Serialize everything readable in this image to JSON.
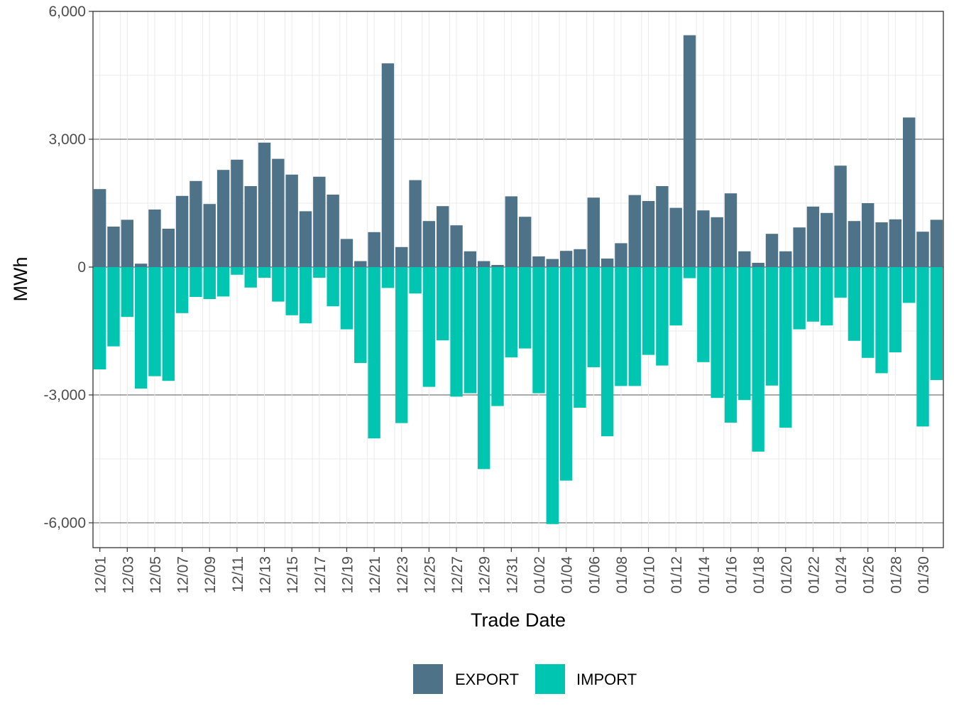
{
  "chart_data": {
    "type": "bar",
    "stacked": true,
    "xlabel": "Trade Date",
    "ylabel": "MWh",
    "ylim": [
      -6600,
      6000
    ],
    "y_ticks": [
      6000,
      3000,
      0,
      -3000,
      -6000
    ],
    "y_tick_labels": [
      "6,000",
      "3,000",
      "0",
      "-3,000",
      "-6,000"
    ],
    "grid": true,
    "legend_position": "bottom",
    "categories": [
      "12/01",
      "12/02",
      "12/03",
      "12/04",
      "12/05",
      "12/06",
      "12/07",
      "12/08",
      "12/09",
      "12/10",
      "12/11",
      "12/12",
      "12/13",
      "12/14",
      "12/15",
      "12/16",
      "12/17",
      "12/18",
      "12/19",
      "12/20",
      "12/21",
      "12/22",
      "12/23",
      "12/24",
      "12/25",
      "12/26",
      "12/27",
      "12/28",
      "12/29",
      "12/30",
      "12/31",
      "01/01",
      "01/02",
      "01/03",
      "01/04",
      "01/05",
      "01/06",
      "01/07",
      "01/08",
      "01/09",
      "01/10",
      "01/11",
      "01/12",
      "01/13",
      "01/14",
      "01/15",
      "01/16",
      "01/17",
      "01/18",
      "01/19",
      "01/20",
      "01/21",
      "01/22",
      "01/23",
      "01/24",
      "01/25",
      "01/26",
      "01/27",
      "01/28",
      "01/29",
      "01/30",
      "01/31"
    ],
    "x_tick_labels": [
      "12/01",
      "12/03",
      "12/05",
      "12/07",
      "12/09",
      "12/11",
      "12/13",
      "12/15",
      "12/17",
      "12/19",
      "12/21",
      "12/23",
      "12/25",
      "12/27",
      "12/29",
      "12/31",
      "01/02",
      "01/04",
      "01/06",
      "01/08",
      "01/10",
      "01/12",
      "01/14",
      "01/16",
      "01/18",
      "01/20",
      "01/22",
      "01/24",
      "01/26",
      "01/28",
      "01/30"
    ],
    "series": [
      {
        "name": "EXPORT",
        "color": "#4e7388",
        "values": [
          1830,
          950,
          1110,
          80,
          1350,
          900,
          1670,
          2020,
          1480,
          2280,
          2520,
          1900,
          2920,
          2540,
          2170,
          1310,
          2120,
          1700,
          660,
          140,
          820,
          4780,
          470,
          2040,
          1080,
          1430,
          980,
          370,
          140,
          50,
          1660,
          1180,
          250,
          190,
          380,
          420,
          1630,
          200,
          560,
          1690,
          1550,
          1900,
          1390,
          5440,
          1330,
          1170,
          1730,
          370,
          100,
          780,
          370,
          930,
          1420,
          1270,
          2380,
          1080,
          1500,
          1050,
          1120,
          3510,
          830,
          1110
        ]
      },
      {
        "name": "IMPORT",
        "color": "#00c5b0",
        "values": [
          -2400,
          -1860,
          -1170,
          -2850,
          -2560,
          -2670,
          -1080,
          -700,
          -750,
          -690,
          -180,
          -480,
          -250,
          -810,
          -1130,
          -1320,
          -250,
          -920,
          -1460,
          -2250,
          -4020,
          -490,
          -3660,
          -620,
          -2810,
          -1720,
          -3040,
          -2960,
          -4740,
          -3260,
          -2120,
          -1910,
          -2960,
          -6030,
          -5010,
          -3300,
          -2350,
          -3970,
          -2790,
          -2790,
          -2060,
          -2310,
          -1370,
          -260,
          -2230,
          -3070,
          -3650,
          -3120,
          -4330,
          -2780,
          -3770,
          -1460,
          -1280,
          -1370,
          -720,
          -1730,
          -2130,
          -2490,
          -2000,
          -840,
          -3740,
          -2650
        ]
      }
    ]
  }
}
